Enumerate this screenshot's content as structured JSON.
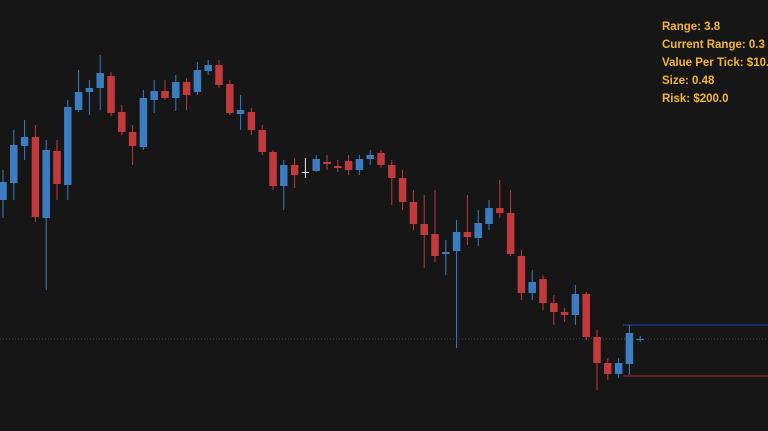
{
  "chart_data": {
    "type": "candlestick",
    "ylim": [
      0,
      431
    ],
    "up_color": "#3b7dc0",
    "down_color": "#c23a3c",
    "doji_color": "#e8e8e8",
    "open": [
      231,
      248,
      285,
      294,
      213,
      280,
      246,
      321,
      339,
      343,
      355,
      319,
      299,
      284,
      331,
      340,
      333,
      349,
      339,
      360,
      366,
      347,
      317,
      319,
      301,
      279,
      245,
      266,
      259,
      260,
      269,
      265,
      270,
      261,
      272,
      278,
      266,
      253,
      229,
      207,
      197,
      177,
      180,
      199,
      193,
      207,
      223,
      218,
      175,
      138,
      152,
      128,
      119,
      116,
      137,
      94,
      68,
      57,
      67,
      91
    ],
    "high": [
      261,
      301,
      311,
      306,
      291,
      291,
      331,
      361,
      351,
      376,
      359,
      326,
      306,
      341,
      351,
      351,
      356,
      353,
      369,
      371,
      371,
      351,
      336,
      323,
      306,
      281,
      271,
      273,
      273,
      276,
      276,
      271,
      276,
      276,
      281,
      281,
      271,
      261,
      241,
      236,
      241,
      191,
      211,
      236,
      221,
      231,
      251,
      241,
      181,
      161,
      156,
      136,
      123,
      146,
      139,
      101,
      73,
      73,
      106,
      95
    ],
    "low": [
      213,
      231,
      271,
      209,
      141,
      231,
      231,
      319,
      316,
      321,
      315,
      296,
      266,
      281,
      318,
      331,
      320,
      321,
      336,
      356,
      343,
      316,
      301,
      296,
      276,
      241,
      221,
      243,
      253,
      259,
      261,
      259,
      256,
      256,
      266,
      263,
      226,
      221,
      201,
      163,
      169,
      156,
      83,
      186,
      185,
      201,
      213,
      175,
      131,
      131,
      121,
      106,
      109,
      106,
      91,
      41,
      51,
      53,
      56,
      89
    ],
    "close": [
      249,
      286,
      294,
      214,
      281,
      247,
      324,
      339,
      343,
      358,
      318,
      299,
      285,
      333,
      340,
      333,
      349,
      336,
      361,
      366,
      346,
      318,
      321,
      301,
      279,
      245,
      266,
      256,
      259,
      272,
      267,
      263,
      261,
      272,
      276,
      266,
      253,
      229,
      207,
      196,
      175,
      179,
      199,
      194,
      208,
      223,
      218,
      177,
      138,
      149,
      128,
      119,
      116,
      137,
      94,
      68,
      57,
      68,
      98,
      92
    ],
    "levels": [
      {
        "value": 106,
        "color": "#2b3fb5",
        "style": "solid"
      },
      {
        "value": 55,
        "color": "#b52b2b",
        "style": "solid"
      },
      {
        "value": 92,
        "color": "#444444",
        "style": "dotted"
      }
    ],
    "annotations": [
      "Range: 3.8",
      "Current Range: 0.3",
      "Value Per Tick: $10.",
      "Size: 0.48",
      "Risk: $200.0"
    ],
    "annotation_color": "#f3b631"
  }
}
